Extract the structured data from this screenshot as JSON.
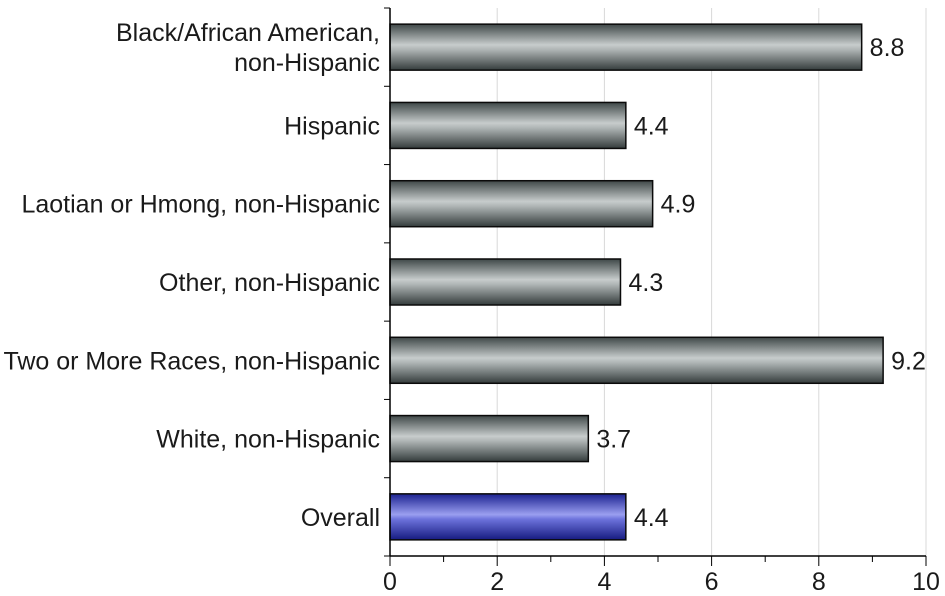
{
  "chart_data": {
    "type": "bar",
    "orientation": "horizontal",
    "categories": [
      [
        "Black/African American,",
        "non-Hispanic"
      ],
      [
        "Hispanic"
      ],
      [
        "Laotian or Hmong, non-Hispanic"
      ],
      [
        "Other, non-Hispanic"
      ],
      [
        "Two or More Races, non-Hispanic"
      ],
      [
        "White, non-Hispanic"
      ],
      [
        "Overall"
      ]
    ],
    "values": [
      8.8,
      4.4,
      4.9,
      4.3,
      9.2,
      3.7,
      4.4
    ],
    "value_labels": [
      "8.8",
      "4.4",
      "4.9",
      "4.3",
      "9.2",
      "3.7",
      "4.4"
    ],
    "highlight_index": 6,
    "xlim": [
      0,
      10
    ],
    "x_ticks": [
      0,
      2,
      4,
      6,
      8,
      10
    ],
    "grid": "vertical",
    "legend": "none",
    "title": "",
    "xlabel": "",
    "ylabel": "",
    "colors": {
      "bar": "#6f7a7a",
      "bar_highlight": "#3f45b8",
      "grid": "#d8d8d8",
      "axis": "#000000"
    }
  }
}
